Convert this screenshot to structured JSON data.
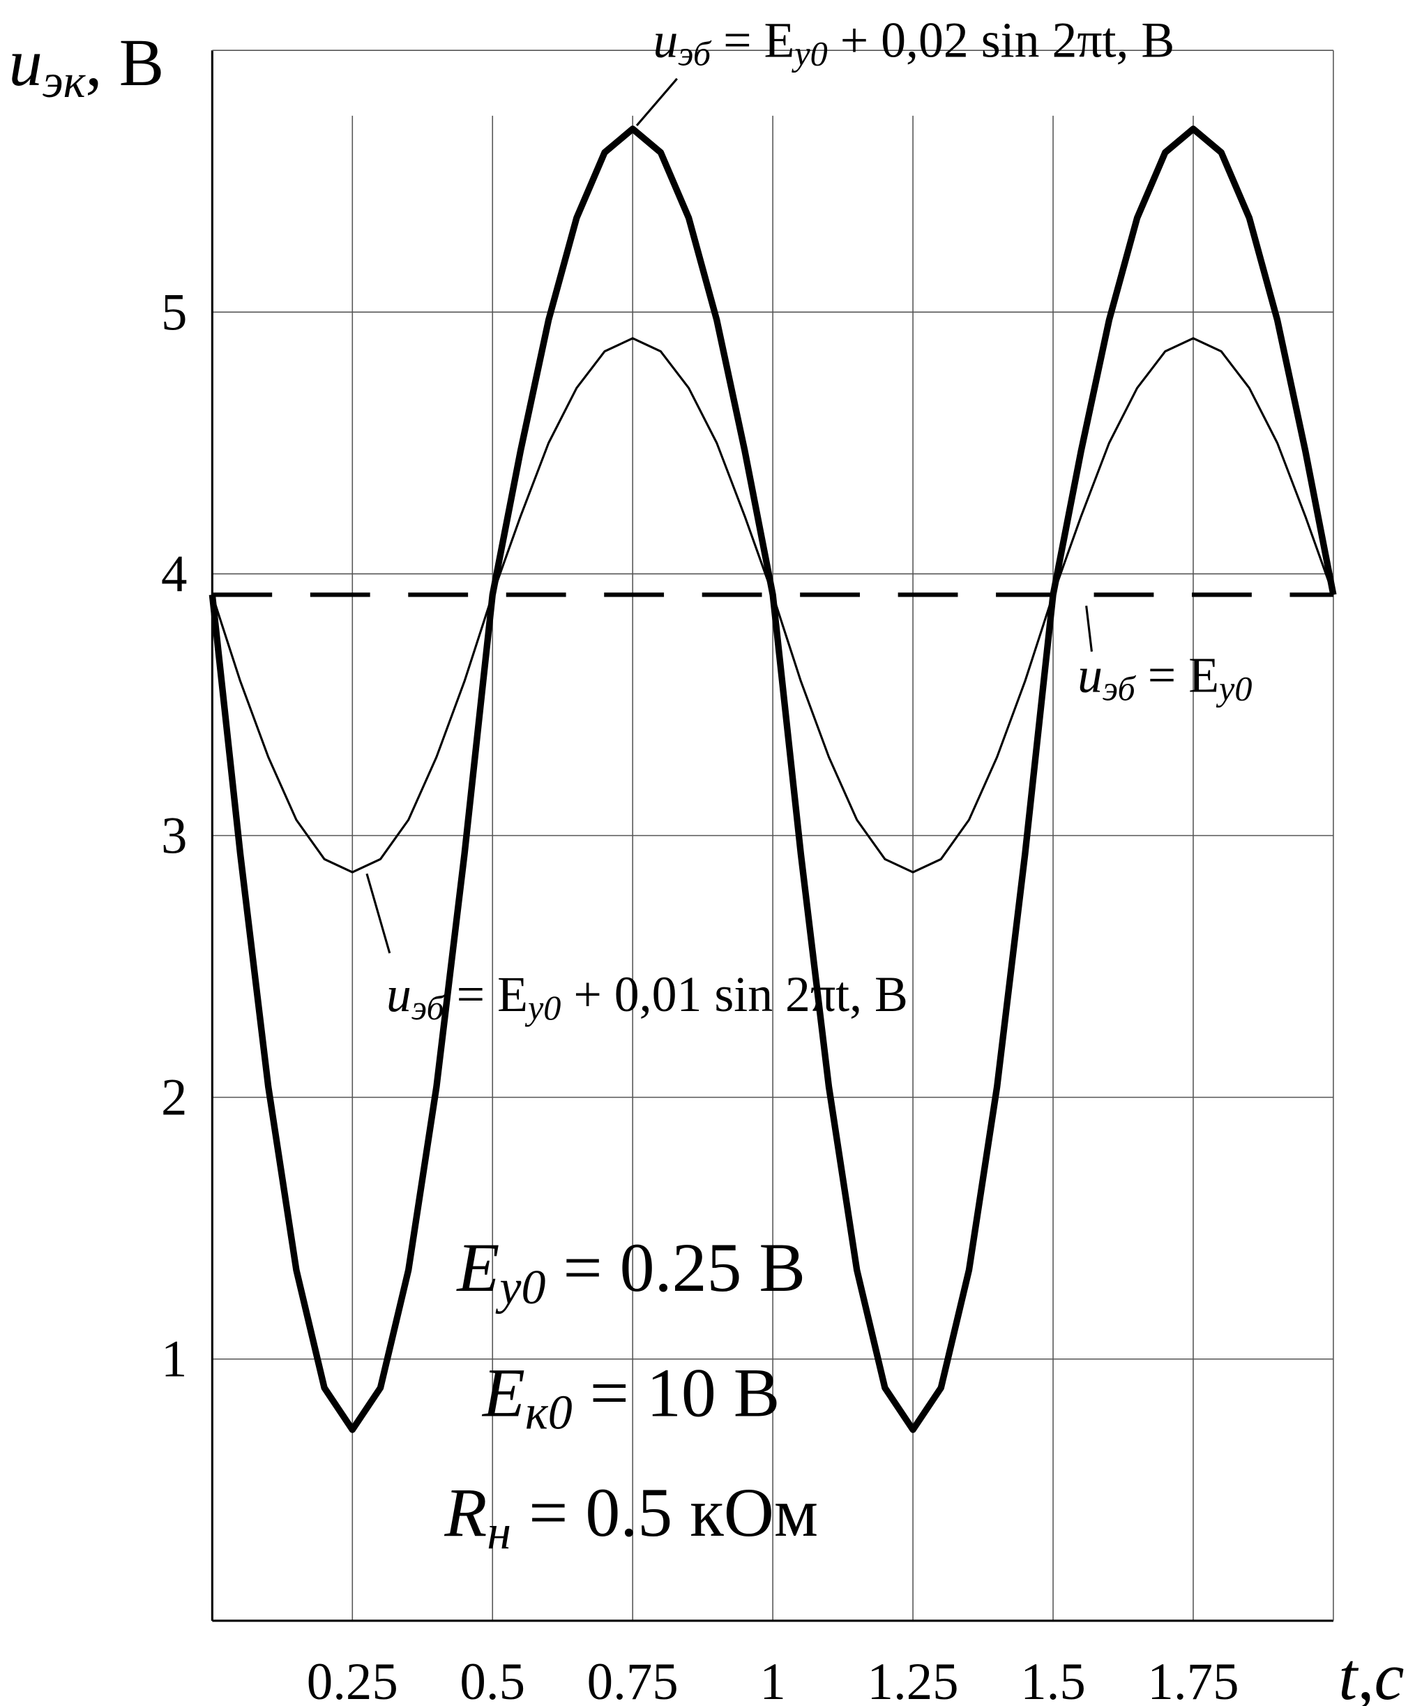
{
  "chart_data": {
    "type": "line",
    "y_label": [
      "u",
      "эк",
      ", В"
    ],
    "x_label": "t,c",
    "xlim": [
      0,
      2
    ],
    "ylim": [
      0,
      6
    ],
    "xticks": [
      0.25,
      0.5,
      0.75,
      1,
      1.25,
      1.5,
      1.75
    ],
    "yticks": [
      1,
      2,
      3,
      4,
      5
    ],
    "grid": true,
    "x": [
      0,
      0.05,
      0.1,
      0.15,
      0.2,
      0.25,
      0.3,
      0.35,
      0.4,
      0.45,
      0.5,
      0.55,
      0.6,
      0.65,
      0.7,
      0.75,
      0.8,
      0.85,
      0.9,
      0.95,
      1,
      1.05,
      1.1,
      1.15,
      1.2,
      1.25,
      1.3,
      1.35,
      1.4,
      1.45,
      1.5,
      1.55,
      1.6,
      1.65,
      1.7,
      1.75,
      1.8,
      1.85,
      1.9,
      1.95,
      2
    ],
    "series": [
      {
        "color": "#000000",
        "style": "thick",
        "values": [
          3.92,
          2.93,
          2.04,
          1.34,
          0.89,
          0.73,
          0.89,
          1.34,
          2.04,
          2.93,
          3.92,
          4.47,
          4.97,
          5.36,
          5.61,
          5.7,
          5.61,
          5.36,
          4.97,
          4.47,
          3.92,
          2.93,
          2.04,
          1.34,
          0.89,
          0.73,
          0.89,
          1.34,
          2.04,
          2.93,
          3.92,
          4.47,
          4.97,
          5.36,
          5.61,
          5.7,
          5.61,
          5.36,
          4.97,
          4.47,
          3.92
        ]
      },
      {
        "color": "#000000",
        "style": "thin",
        "values": [
          3.92,
          3.59,
          3.3,
          3.06,
          2.91,
          2.86,
          2.91,
          3.06,
          3.3,
          3.59,
          3.92,
          4.22,
          4.5,
          4.71,
          4.85,
          4.9,
          4.85,
          4.71,
          4.5,
          4.22,
          3.92,
          3.59,
          3.3,
          3.06,
          2.91,
          2.86,
          2.91,
          3.06,
          3.3,
          3.59,
          3.92,
          4.22,
          4.5,
          4.71,
          4.85,
          4.9,
          4.85,
          4.71,
          4.5,
          4.22,
          3.92
        ]
      },
      {
        "color": "#000000",
        "style": "dashed",
        "x": [
          0,
          2
        ],
        "values": [
          3.92,
          3.92
        ]
      }
    ],
    "annotations": [
      [
        "u",
        "эб",
        " = E",
        "y0",
        " + 0,02 sin 2πt, В"
      ],
      [
        "u",
        "эб",
        " = E",
        "y0"
      ],
      [
        "u",
        "эб",
        " = E",
        "y0",
        " + 0,01 sin 2πt, В"
      ]
    ],
    "parameters": [
      [
        "E",
        "y0",
        " = 0.25 В"
      ],
      [
        "E",
        "к0",
        " = 10 В"
      ],
      [
        "R",
        "н",
        " = 0.5 кОм"
      ]
    ]
  }
}
